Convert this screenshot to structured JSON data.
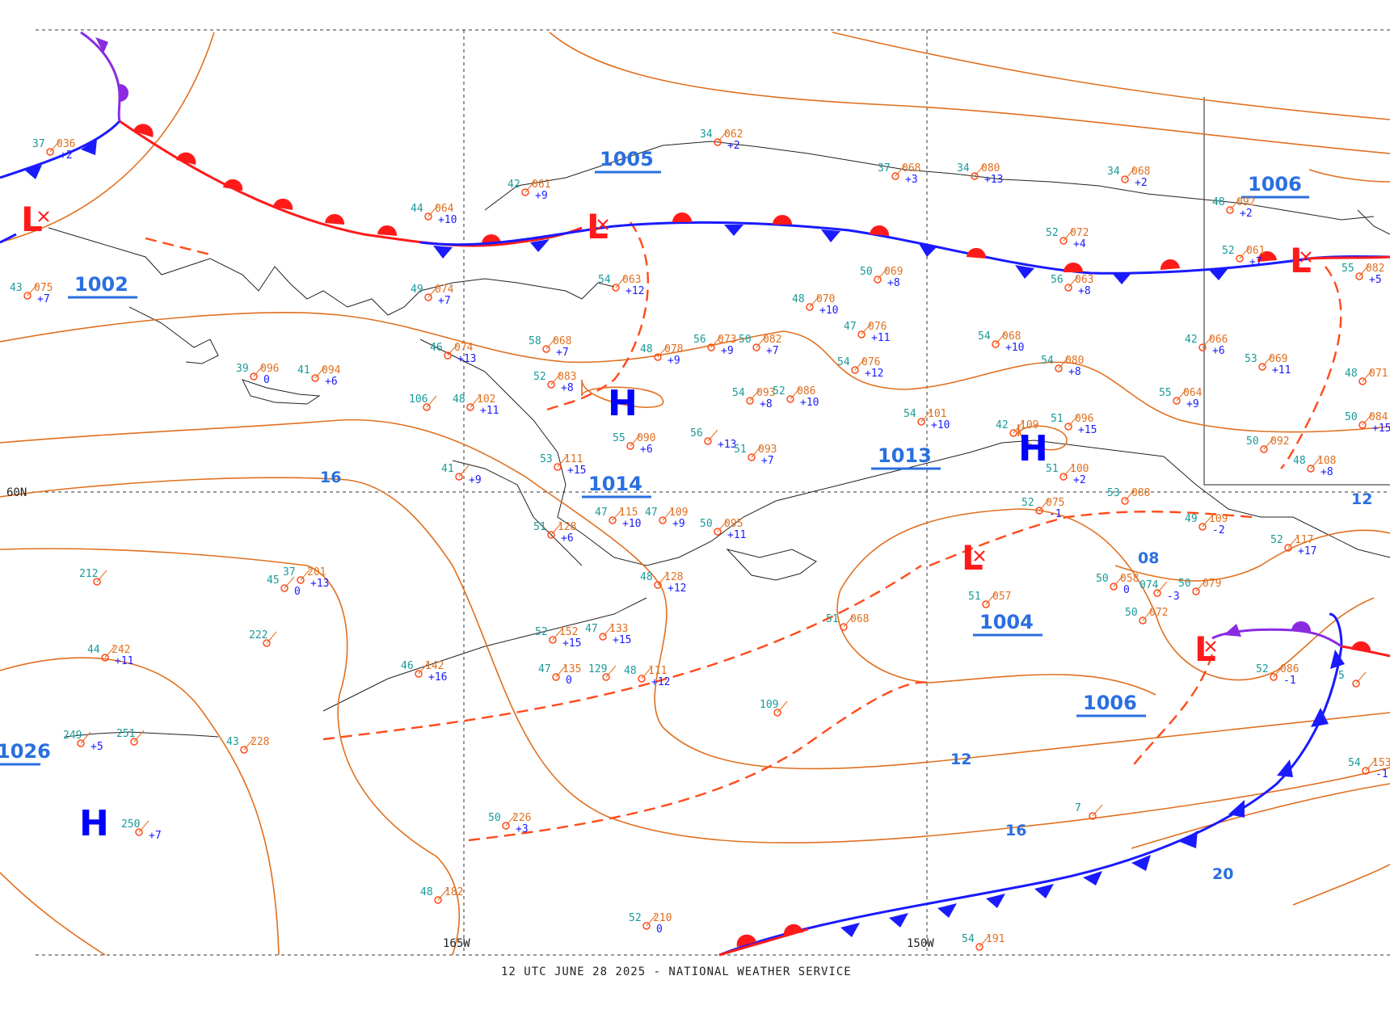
{
  "footer": "12 UTC JUNE 28 2025 - NATIONAL WEATHER SERVICE",
  "graticule": {
    "lat_60": "60N",
    "lon_165": "165W",
    "lon_150": "150W"
  },
  "colors": {
    "isobar": "#e07020",
    "front_warm": "#ff1a1a",
    "front_cold": "#1a1aff",
    "occluded": "#8a2be2",
    "high": "#0000ff",
    "low": "#ff1a1a",
    "pressure_label": "#2a6fe0",
    "trough": "#ff4a1a"
  },
  "centers": [
    {
      "type": "L",
      "label": "L"
    },
    {
      "type": "L",
      "label": "L"
    },
    {
      "type": "L",
      "label": "L"
    },
    {
      "type": "L",
      "label": "L"
    },
    {
      "type": "L",
      "label": "L"
    },
    {
      "type": "H",
      "label": "H"
    },
    {
      "type": "H",
      "label": "H"
    },
    {
      "type": "H",
      "label": "H"
    }
  ],
  "pressure_values": [
    "1005",
    "1002",
    "1006",
    "1014",
    "1013",
    "1004",
    "1006",
    "1026"
  ],
  "isobar_labels": [
    "16",
    "08",
    "12",
    "16",
    "20",
    "12"
  ],
  "stations": [
    [
      "37",
      "036",
      "+2"
    ],
    [
      "43",
      "075",
      "+7"
    ],
    [
      "44",
      "064",
      "+10"
    ],
    [
      "42",
      "061",
      "+9"
    ],
    [
      "34",
      "062",
      "+2"
    ],
    [
      "37",
      "068",
      "+3"
    ],
    [
      "34",
      "080",
      "+13"
    ],
    [
      "34",
      "068",
      "+2"
    ],
    [
      "48",
      "092",
      "+2"
    ],
    [
      "52",
      "072",
      "+4"
    ],
    [
      "52",
      "061",
      "+7"
    ],
    [
      "55",
      "082",
      "+5"
    ],
    [
      "49",
      "074",
      "+7"
    ],
    [
      "54",
      "063",
      "+12"
    ],
    [
      "50",
      "069",
      "+8"
    ],
    [
      "56",
      "063",
      "+8"
    ],
    [
      "48",
      "070",
      "+10"
    ],
    [
      "47",
      "076",
      "+11"
    ],
    [
      "42",
      "066",
      "+6"
    ],
    [
      "53",
      "069",
      "+11"
    ],
    [
      "46",
      "074",
      "+13"
    ],
    [
      "58",
      "068",
      "+7"
    ],
    [
      "48",
      "078",
      "+9"
    ],
    [
      "56",
      "073",
      "+9"
    ],
    [
      "50",
      "082",
      "+7"
    ],
    [
      "54",
      "076",
      "+12"
    ],
    [
      "54",
      "068",
      "+10"
    ],
    [
      "54",
      "080",
      "+8"
    ],
    [
      "39",
      "096",
      "0"
    ],
    [
      "41",
      "094",
      "+6"
    ],
    [
      "52",
      "083",
      "+8"
    ],
    [
      "54",
      "093",
      "+8"
    ],
    [
      "52",
      "086",
      "+10"
    ],
    [
      "55",
      "064",
      "+9"
    ],
    [
      "48",
      "071",
      ""
    ],
    [
      "48",
      "102",
      "+11"
    ],
    [
      "106",
      "",
      ""
    ],
    [
      "55",
      "090",
      "+6"
    ],
    [
      "56",
      "",
      "+13"
    ],
    [
      "51",
      "093",
      "+7"
    ],
    [
      "54",
      "101",
      "+10"
    ],
    [
      "42",
      "109",
      ""
    ],
    [
      "51",
      "096",
      "+15"
    ],
    [
      "50",
      "092",
      ""
    ],
    [
      "48",
      "108",
      "+8"
    ],
    [
      "50",
      "084",
      "+15"
    ],
    [
      "53",
      "111",
      "+15"
    ],
    [
      "41",
      "",
      "+9"
    ],
    [
      "47",
      "115",
      "+10"
    ],
    [
      "47",
      "109",
      "+9"
    ],
    [
      "51",
      "128",
      "+6"
    ],
    [
      "50",
      "095",
      "+11"
    ],
    [
      "52",
      "075",
      "-1"
    ],
    [
      "51",
      "100",
      "+2"
    ],
    [
      "53",
      "088",
      ""
    ],
    [
      "49",
      "109",
      "-2"
    ],
    [
      "52",
      "117",
      "+17"
    ],
    [
      "37",
      "201",
      "+13"
    ],
    [
      "45",
      "",
      "0"
    ],
    [
      "48",
      "128",
      "+12"
    ],
    [
      "212",
      "",
      ""
    ],
    [
      "222",
      "",
      ""
    ],
    [
      "44",
      "242",
      "+11"
    ],
    [
      "52",
      "152",
      "+15"
    ],
    [
      "47",
      "133",
      "+15"
    ],
    [
      "46",
      "142",
      "+16"
    ],
    [
      "47",
      "135",
      "0"
    ],
    [
      "129",
      "",
      ""
    ],
    [
      "48",
      "111",
      "+12"
    ],
    [
      "51",
      "068",
      ""
    ],
    [
      "51",
      "057",
      ""
    ],
    [
      "50",
      "058",
      "0"
    ],
    [
      "074",
      "",
      "-3"
    ],
    [
      "50",
      "079",
      ""
    ],
    [
      "50",
      "072",
      ""
    ],
    [
      "52",
      "086",
      "-1"
    ],
    [
      "249",
      "",
      "+5"
    ],
    [
      "251",
      "",
      ""
    ],
    [
      "43",
      "228",
      ""
    ],
    [
      "250",
      "",
      "+7"
    ],
    [
      "50",
      "226",
      "+3"
    ],
    [
      "109",
      "",
      ""
    ],
    [
      "48",
      "182",
      ""
    ],
    [
      "52",
      "210",
      "0"
    ],
    [
      "54",
      "191",
      ""
    ],
    [
      "54",
      "153",
      "-1"
    ],
    [
      "5",
      "",
      ""
    ],
    [
      "7",
      "",
      ""
    ]
  ]
}
